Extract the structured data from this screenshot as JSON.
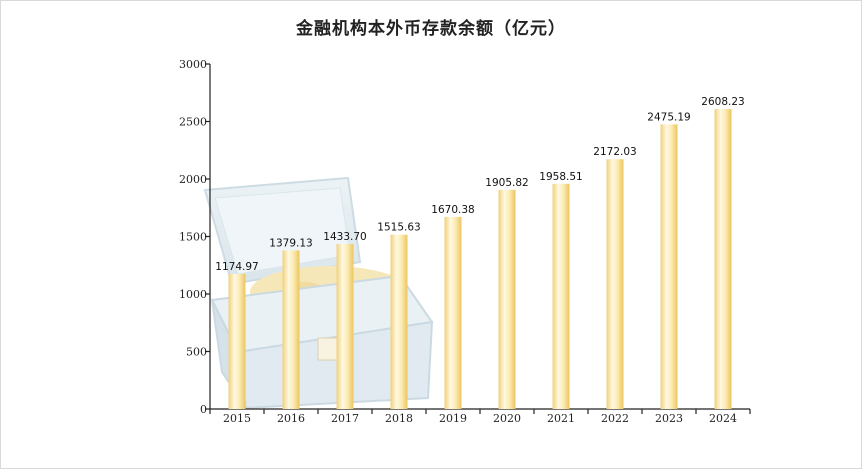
{
  "chart_data": {
    "type": "bar",
    "title": "金融机构本外币存款余额（亿元）",
    "xlabel": "",
    "ylabel": "",
    "categories": [
      "2015",
      "2016",
      "2017",
      "2018",
      "2019",
      "2020",
      "2021",
      "2022",
      "2023",
      "2024"
    ],
    "values": [
      1174.97,
      1379.13,
      1433.7,
      1515.63,
      1670.38,
      1905.82,
      1958.51,
      2172.03,
      2475.19,
      2608.23
    ],
    "value_labels": [
      "1174.97",
      "1379.13",
      "1433.70",
      "1515.63",
      "1670.38",
      "1905.82",
      "1958.51",
      "2172.03",
      "2475.19",
      "2608.23"
    ],
    "ylim": [
      0,
      3000
    ],
    "yticks": [
      0,
      500,
      1000,
      1500,
      2000,
      2500,
      3000
    ],
    "ytick_labels": [
      "0",
      "500",
      "1000",
      "1500",
      "2000",
      "2500",
      "3000"
    ],
    "grid": false,
    "legend": "none",
    "colors": {
      "bar_edge": "#f2d58c",
      "bar_mid": "#fff8dc",
      "bar_core": "#f7e6a8",
      "axis": "#222222",
      "chest_body": "#dfeaf0",
      "chest_edge": "#b9ced8",
      "coins": "#f3dfa2"
    },
    "background_icon": "treasure-chest-illustration"
  }
}
